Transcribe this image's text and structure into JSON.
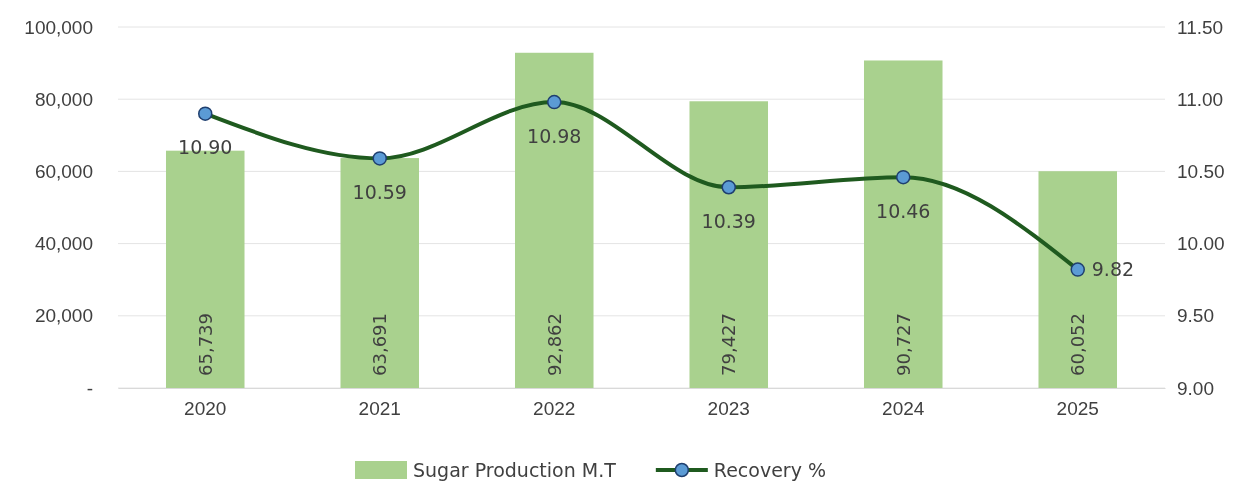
{
  "chart_data": {
    "type": "bar",
    "categories": [
      "2020",
      "2021",
      "2022",
      "2023",
      "2024",
      "2025"
    ],
    "series": [
      {
        "name": "Sugar Production M.T",
        "color": "#a9d18e",
        "values": [
          65739,
          63691,
          92862,
          79427,
          90727,
          60052
        ],
        "value_labels": [
          "65,739",
          "63,691",
          "92,862",
          "79,427",
          "90,727",
          "60,052"
        ]
      },
      {
        "name": "Recovery %",
        "type": "line",
        "axis": "y2",
        "color": "#1f5a1f",
        "values": [
          10.9,
          10.59,
          10.98,
          10.39,
          10.46,
          9.82
        ],
        "value_labels": [
          "10.90",
          "10.59",
          "10.98",
          "10.39",
          "10.46",
          "9.82"
        ]
      }
    ],
    "ylim": [
      0,
      100000
    ],
    "yticks": [
      {
        "value": 0,
        "label": "-"
      },
      {
        "value": 20000,
        "label": "20,000"
      },
      {
        "value": 40000,
        "label": "40,000"
      },
      {
        "value": 60000,
        "label": "60,000"
      },
      {
        "value": 80000,
        "label": "80,000"
      },
      {
        "value": 100000,
        "label": "100,000"
      }
    ],
    "y2lim": [
      9,
      11.5
    ],
    "y2ticks": [
      {
        "value": 9,
        "label": "9.00"
      },
      {
        "value": 9.5,
        "label": "9.50"
      },
      {
        "value": 10,
        "label": "10.00"
      },
      {
        "value": 10.5,
        "label": "10.50"
      },
      {
        "value": 11,
        "label": "11.00"
      },
      {
        "value": 11.5,
        "label": "11.50"
      }
    ],
    "grid": "y",
    "legend": "bottom",
    "marker": "circle",
    "line_style": "solid"
  }
}
